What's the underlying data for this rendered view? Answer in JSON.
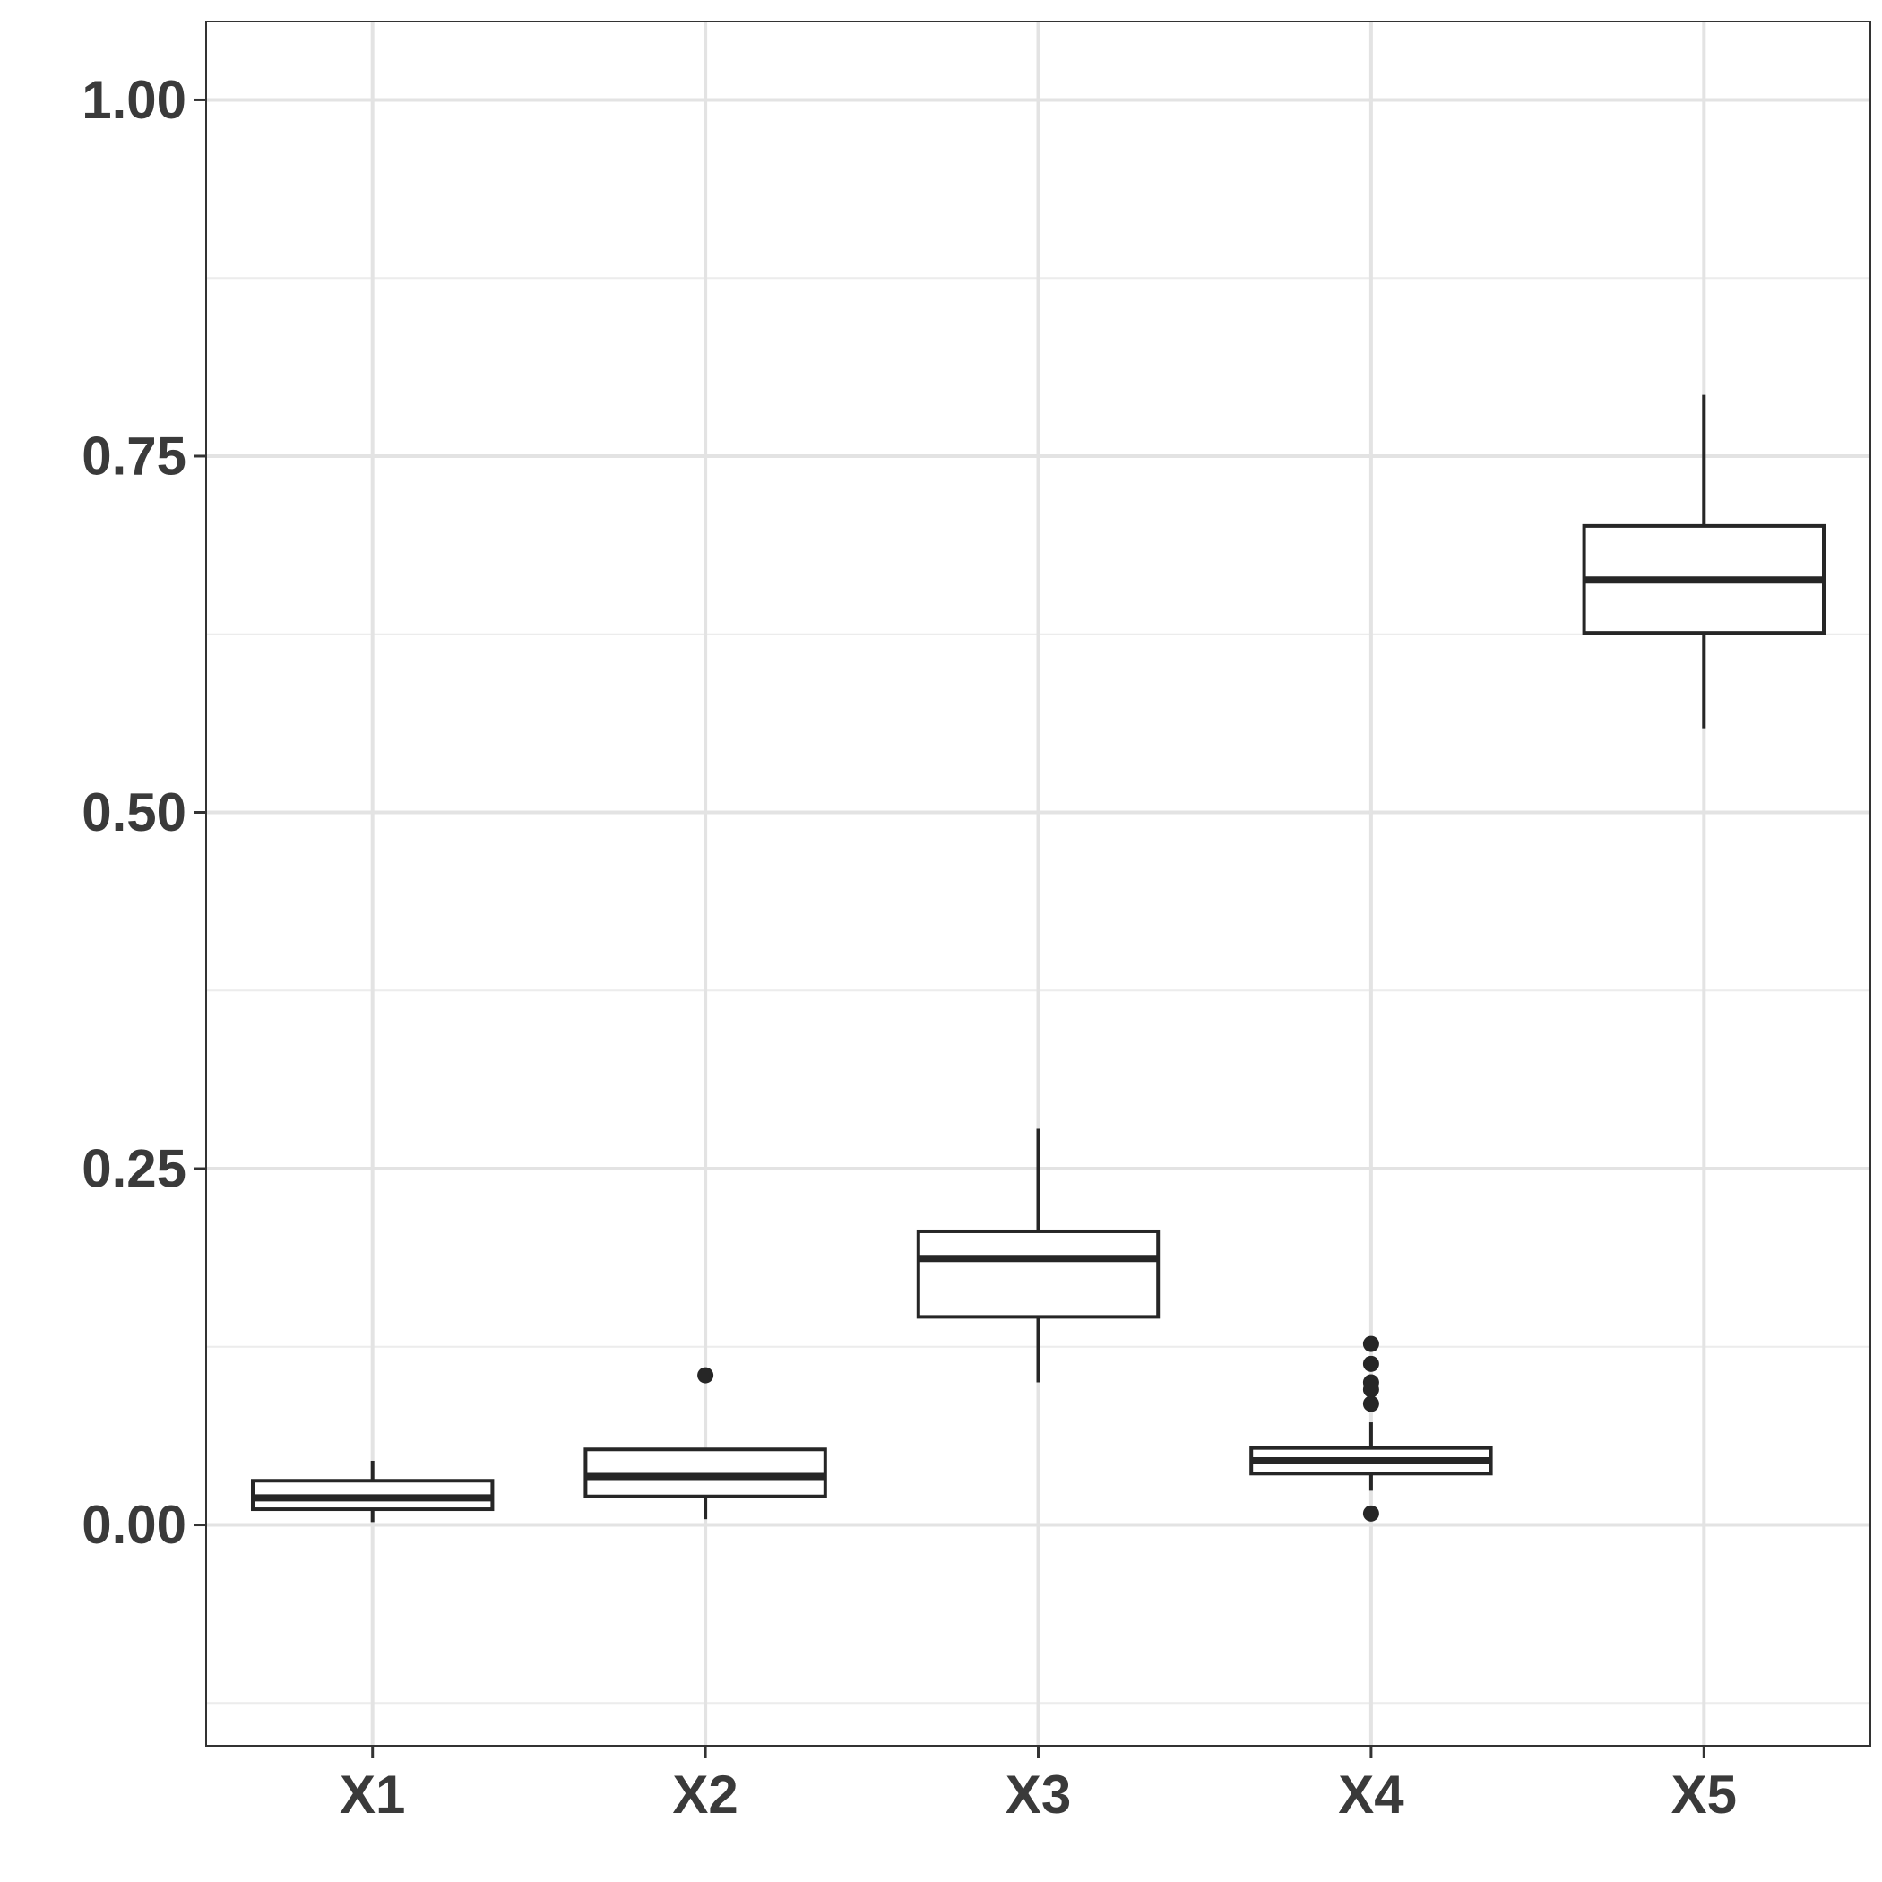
{
  "chart_data": {
    "type": "boxplot",
    "title": "",
    "xlabel": "",
    "ylabel": "",
    "categories": [
      "X1",
      "X2",
      "X3",
      "X4",
      "X5"
    ],
    "ylim": [
      -0.155,
      1.055
    ],
    "y_ticks": [
      0.0,
      0.25,
      0.5,
      0.75,
      1.0
    ],
    "y_tick_labels": [
      "0.00",
      "0.25",
      "0.50",
      "0.75",
      "1.00"
    ],
    "y_minor_ticks": [
      -0.125,
      0.125,
      0.375,
      0.625,
      0.875
    ],
    "grid": true,
    "legend": "none",
    "boxes": [
      {
        "category": "X1",
        "whisker_low": 0.002,
        "q1": 0.011,
        "median": 0.019,
        "q3": 0.031,
        "whisker_high": 0.045,
        "outliers": []
      },
      {
        "category": "X2",
        "whisker_low": 0.004,
        "q1": 0.02,
        "median": 0.034,
        "q3": 0.053,
        "whisker_high": 0.054,
        "outliers": [
          0.105
        ]
      },
      {
        "category": "X3",
        "whisker_low": 0.1,
        "q1": 0.146,
        "median": 0.187,
        "q3": 0.206,
        "whisker_high": 0.278,
        "outliers": []
      },
      {
        "category": "X4",
        "whisker_low": 0.024,
        "q1": 0.036,
        "median": 0.045,
        "q3": 0.054,
        "whisker_high": 0.072,
        "outliers": [
          0.008,
          0.085,
          0.095,
          0.1,
          0.113,
          0.127
        ]
      },
      {
        "category": "X5",
        "whisker_low": 0.559,
        "q1": 0.626,
        "median": 0.663,
        "q3": 0.701,
        "whisker_high": 0.793,
        "outliers": []
      }
    ]
  },
  "colors": {
    "background": "#ffffff",
    "grid_major": "#e3e3e3",
    "grid_minor": "#ececec",
    "box_stroke": "#262626",
    "box_fill": "#ffffff",
    "panel_border": "#333333",
    "tick_text": "#3a3a3a"
  }
}
